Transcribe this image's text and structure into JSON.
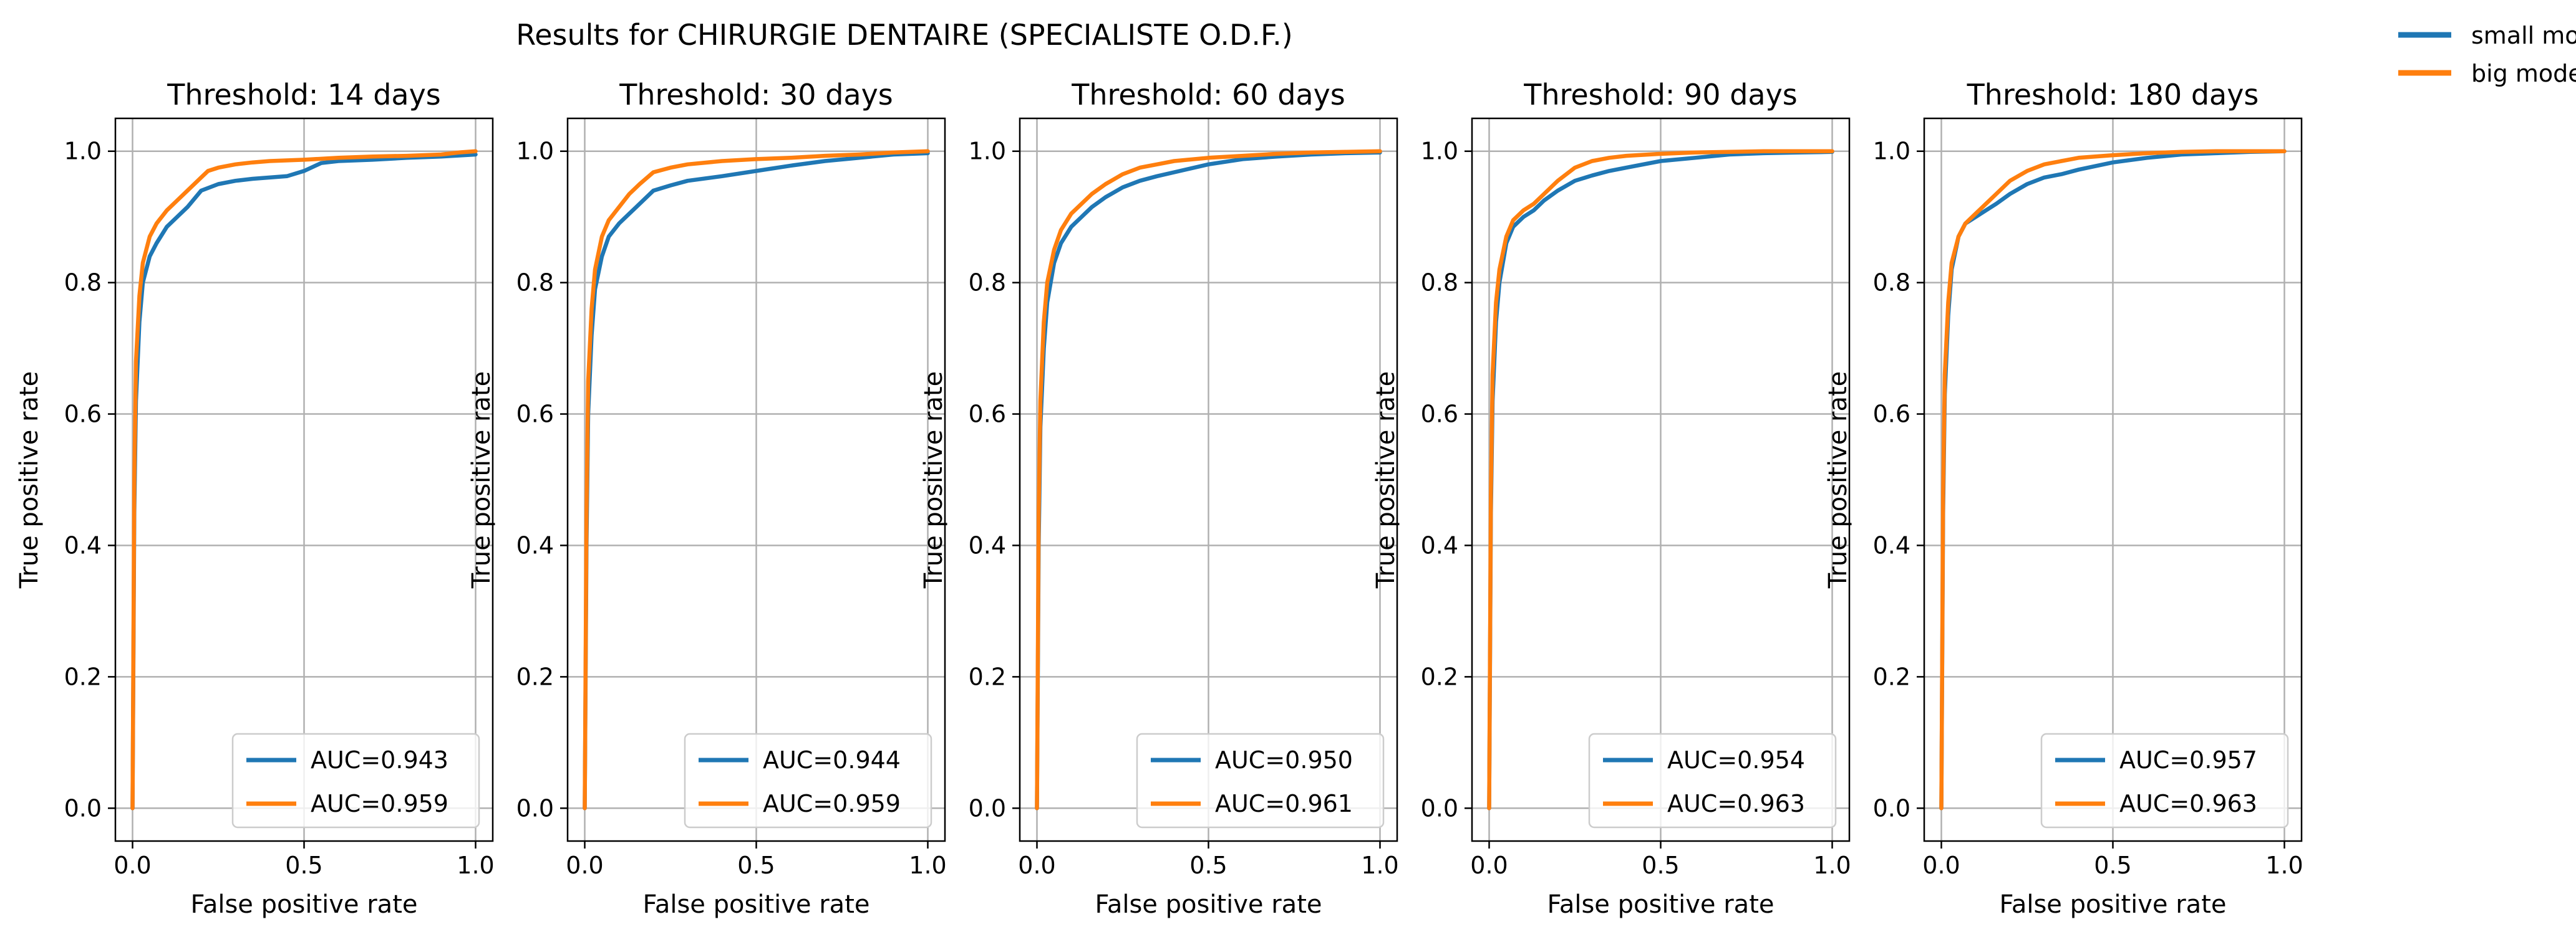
{
  "figure": {
    "suptitle": "Results for CHIRURGIE DENTAIRE (SPECIALISTE O.D.F.)",
    "series_colors": {
      "small model": "#1f77b4",
      "big model": "#ff7f0e"
    },
    "legend": [
      {
        "name": "small model",
        "color": "#1f77b4"
      },
      {
        "name": "big model",
        "color": "#ff7f0e"
      }
    ],
    "legend_position": "top-right"
  },
  "chart_data": [
    {
      "type": "line",
      "title": "Threshold: 14 days",
      "xlabel": "False positive rate",
      "ylabel": "True positive rate",
      "xlim": [
        -0.05,
        1.05
      ],
      "ylim": [
        -0.05,
        1.05
      ],
      "xticks": [
        "0.0",
        "0.5",
        "1.0"
      ],
      "yticks": [
        "0.0",
        "0.2",
        "0.4",
        "0.6",
        "0.8",
        "1.0"
      ],
      "grid": true,
      "legend_position": "lower-right",
      "series": [
        {
          "name": "small model",
          "auc_label": "AUC=0.943",
          "color": "#1f77b4",
          "x": [
            0,
            0.005,
            0.01,
            0.02,
            0.03,
            0.05,
            0.07,
            0.1,
            0.13,
            0.16,
            0.2,
            0.25,
            0.3,
            0.35,
            0.4,
            0.45,
            0.5,
            0.55,
            0.6,
            0.7,
            0.8,
            0.9,
            1.0
          ],
          "y": [
            0,
            0.45,
            0.62,
            0.74,
            0.8,
            0.84,
            0.86,
            0.885,
            0.9,
            0.915,
            0.94,
            0.95,
            0.955,
            0.958,
            0.96,
            0.962,
            0.97,
            0.982,
            0.985,
            0.987,
            0.99,
            0.992,
            0.995
          ]
        },
        {
          "name": "big model",
          "auc_label": "AUC=0.959",
          "color": "#ff7f0e",
          "x": [
            0,
            0.005,
            0.01,
            0.02,
            0.03,
            0.05,
            0.07,
            0.1,
            0.13,
            0.16,
            0.2,
            0.22,
            0.25,
            0.3,
            0.35,
            0.4,
            0.5,
            0.6,
            0.7,
            0.8,
            0.9,
            0.95,
            1.0
          ],
          "y": [
            0,
            0.5,
            0.68,
            0.78,
            0.83,
            0.87,
            0.89,
            0.91,
            0.925,
            0.94,
            0.96,
            0.97,
            0.975,
            0.98,
            0.983,
            0.985,
            0.987,
            0.99,
            0.992,
            0.993,
            0.995,
            0.998,
            1.0
          ]
        }
      ]
    },
    {
      "type": "line",
      "title": "Threshold: 30 days",
      "xlabel": "False positive rate",
      "ylabel": "True positive rate",
      "xlim": [
        -0.05,
        1.05
      ],
      "ylim": [
        -0.05,
        1.05
      ],
      "xticks": [
        "0.0",
        "0.5",
        "1.0"
      ],
      "yticks": [
        "0.0",
        "0.2",
        "0.4",
        "0.6",
        "0.8",
        "1.0"
      ],
      "grid": true,
      "legend_position": "lower-right",
      "series": [
        {
          "name": "small model",
          "auc_label": "AUC=0.944",
          "color": "#1f77b4",
          "x": [
            0,
            0.005,
            0.01,
            0.02,
            0.03,
            0.05,
            0.07,
            0.1,
            0.13,
            0.16,
            0.2,
            0.25,
            0.3,
            0.4,
            0.5,
            0.6,
            0.7,
            0.8,
            0.9,
            1.0
          ],
          "y": [
            0,
            0.4,
            0.6,
            0.72,
            0.79,
            0.84,
            0.87,
            0.89,
            0.905,
            0.92,
            0.94,
            0.948,
            0.955,
            0.962,
            0.97,
            0.978,
            0.985,
            0.99,
            0.995,
            0.997
          ]
        },
        {
          "name": "big model",
          "auc_label": "AUC=0.959",
          "color": "#ff7f0e",
          "x": [
            0,
            0.005,
            0.01,
            0.02,
            0.03,
            0.05,
            0.07,
            0.1,
            0.13,
            0.16,
            0.2,
            0.25,
            0.3,
            0.4,
            0.5,
            0.6,
            0.7,
            0.8,
            0.9,
            1.0
          ],
          "y": [
            0,
            0.45,
            0.65,
            0.76,
            0.82,
            0.87,
            0.895,
            0.915,
            0.935,
            0.95,
            0.968,
            0.975,
            0.98,
            0.985,
            0.988,
            0.99,
            0.993,
            0.995,
            0.998,
            1.0
          ]
        }
      ]
    },
    {
      "type": "line",
      "title": "Threshold: 60 days",
      "xlabel": "False positive rate",
      "ylabel": "True positive rate",
      "xlim": [
        -0.05,
        1.05
      ],
      "ylim": [
        -0.05,
        1.05
      ],
      "xticks": [
        "0.0",
        "0.5",
        "1.0"
      ],
      "yticks": [
        "0.0",
        "0.2",
        "0.4",
        "0.6",
        "0.8",
        "1.0"
      ],
      "grid": true,
      "legend_position": "lower-right",
      "series": [
        {
          "name": "small model",
          "auc_label": "AUC=0.950",
          "color": "#1f77b4",
          "x": [
            0,
            0.005,
            0.01,
            0.02,
            0.03,
            0.05,
            0.07,
            0.1,
            0.13,
            0.16,
            0.2,
            0.25,
            0.3,
            0.35,
            0.4,
            0.5,
            0.6,
            0.7,
            0.8,
            0.9,
            1.0
          ],
          "y": [
            0,
            0.4,
            0.58,
            0.7,
            0.77,
            0.83,
            0.86,
            0.885,
            0.9,
            0.915,
            0.93,
            0.945,
            0.955,
            0.962,
            0.968,
            0.98,
            0.988,
            0.992,
            0.995,
            0.997,
            0.998
          ]
        },
        {
          "name": "big model",
          "auc_label": "AUC=0.961",
          "color": "#ff7f0e",
          "x": [
            0,
            0.005,
            0.01,
            0.02,
            0.03,
            0.05,
            0.07,
            0.1,
            0.13,
            0.16,
            0.2,
            0.25,
            0.3,
            0.35,
            0.4,
            0.5,
            0.6,
            0.7,
            0.8,
            0.9,
            1.0
          ],
          "y": [
            0,
            0.45,
            0.62,
            0.74,
            0.8,
            0.85,
            0.88,
            0.905,
            0.92,
            0.935,
            0.95,
            0.965,
            0.975,
            0.98,
            0.985,
            0.99,
            0.993,
            0.996,
            0.998,
            0.999,
            1.0
          ]
        }
      ]
    },
    {
      "type": "line",
      "title": "Threshold: 90 days",
      "xlabel": "False positive rate",
      "ylabel": "True positive rate",
      "xlim": [
        -0.05,
        1.05
      ],
      "ylim": [
        -0.05,
        1.05
      ],
      "xticks": [
        "0.0",
        "0.5",
        "1.0"
      ],
      "yticks": [
        "0.0",
        "0.2",
        "0.4",
        "0.6",
        "0.8",
        "1.0"
      ],
      "grid": true,
      "legend_position": "lower-right",
      "series": [
        {
          "name": "small model",
          "auc_label": "AUC=0.954",
          "color": "#1f77b4",
          "x": [
            0,
            0.005,
            0.01,
            0.02,
            0.03,
            0.05,
            0.07,
            0.1,
            0.13,
            0.16,
            0.2,
            0.25,
            0.3,
            0.35,
            0.4,
            0.5,
            0.6,
            0.7,
            0.8,
            0.9,
            1.0
          ],
          "y": [
            0,
            0.45,
            0.62,
            0.74,
            0.8,
            0.86,
            0.885,
            0.9,
            0.91,
            0.925,
            0.94,
            0.955,
            0.963,
            0.97,
            0.975,
            0.985,
            0.99,
            0.995,
            0.997,
            0.998,
            0.999
          ]
        },
        {
          "name": "big model",
          "auc_label": "AUC=0.963",
          "color": "#ff7f0e",
          "x": [
            0,
            0.005,
            0.01,
            0.02,
            0.03,
            0.05,
            0.07,
            0.1,
            0.13,
            0.16,
            0.2,
            0.25,
            0.3,
            0.35,
            0.4,
            0.5,
            0.6,
            0.7,
            0.8,
            0.9,
            1.0
          ],
          "y": [
            0,
            0.48,
            0.66,
            0.77,
            0.82,
            0.87,
            0.895,
            0.91,
            0.92,
            0.935,
            0.955,
            0.975,
            0.985,
            0.99,
            0.993,
            0.996,
            0.998,
            0.999,
            1.0,
            1.0,
            1.0
          ]
        }
      ]
    },
    {
      "type": "line",
      "title": "Threshold: 180 days",
      "xlabel": "False positive rate",
      "ylabel": "True positive rate",
      "xlim": [
        -0.05,
        1.05
      ],
      "ylim": [
        -0.05,
        1.05
      ],
      "xticks": [
        "0.0",
        "0.5",
        "1.0"
      ],
      "yticks": [
        "0.0",
        "0.2",
        "0.4",
        "0.6",
        "0.8",
        "1.0"
      ],
      "grid": true,
      "legend_position": "lower-right",
      "series": [
        {
          "name": "small model",
          "auc_label": "AUC=0.957",
          "color": "#1f77b4",
          "x": [
            0,
            0.005,
            0.01,
            0.02,
            0.03,
            0.05,
            0.07,
            0.1,
            0.13,
            0.16,
            0.2,
            0.25,
            0.3,
            0.35,
            0.4,
            0.5,
            0.6,
            0.7,
            0.8,
            0.9,
            1.0
          ],
          "y": [
            0,
            0.45,
            0.63,
            0.75,
            0.82,
            0.87,
            0.89,
            0.9,
            0.91,
            0.92,
            0.935,
            0.95,
            0.96,
            0.965,
            0.972,
            0.983,
            0.99,
            0.995,
            0.997,
            0.999,
            1.0
          ]
        },
        {
          "name": "big model",
          "auc_label": "AUC=0.963",
          "color": "#ff7f0e",
          "x": [
            0,
            0.005,
            0.01,
            0.02,
            0.03,
            0.05,
            0.07,
            0.1,
            0.13,
            0.16,
            0.2,
            0.25,
            0.3,
            0.35,
            0.4,
            0.5,
            0.6,
            0.7,
            0.8,
            0.9,
            1.0
          ],
          "y": [
            0,
            0.48,
            0.66,
            0.77,
            0.83,
            0.87,
            0.89,
            0.905,
            0.92,
            0.935,
            0.955,
            0.97,
            0.98,
            0.985,
            0.99,
            0.994,
            0.997,
            0.999,
            1.0,
            1.0,
            1.0
          ]
        }
      ]
    }
  ]
}
